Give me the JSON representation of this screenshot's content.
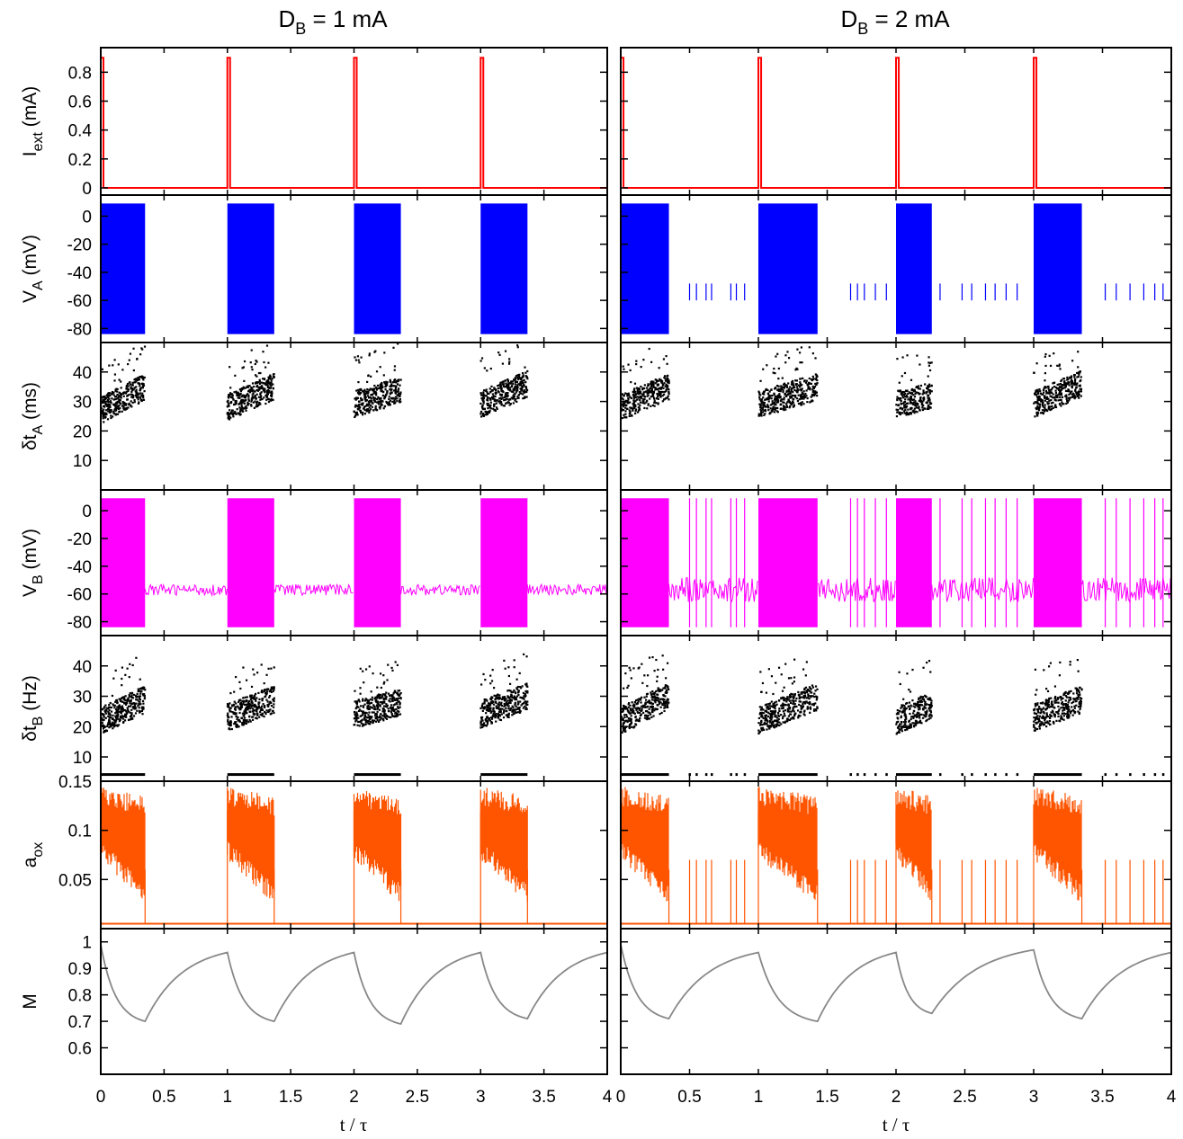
{
  "chart_data": {
    "type": "line",
    "columns": [
      {
        "title_main": "D",
        "title_sub": "B",
        "title_rest": " = 1 mA"
      },
      {
        "title_main": "D",
        "title_sub": "B",
        "title_rest": " = 2 mA"
      }
    ],
    "xlabel": "t / τ",
    "xlim": [
      0,
      4
    ],
    "xticks": [
      "0",
      "0.5",
      "1",
      "1.5",
      "2",
      "2.5",
      "3",
      "3.5",
      "4"
    ],
    "panels": [
      {
        "id": "iext",
        "ylabel_main": "I",
        "ylabel_sub": "ext",
        "ylabel_rest": " (mA)",
        "ylim": [
          -0.05,
          0.97
        ],
        "yticks": [
          "0",
          "0.2",
          "0.4",
          "0.6",
          "0.8"
        ],
        "ytick_values": [
          0,
          0.2,
          0.4,
          0.6,
          0.8
        ],
        "color": "#ff0000",
        "pulse_height": 0.9,
        "pulse_width": 0.02
      },
      {
        "id": "va",
        "ylabel_main": "V",
        "ylabel_sub": "A",
        "ylabel_rest": " (mV)",
        "ylim": [
          -90,
          15
        ],
        "yticks": [
          "-80",
          "-60",
          "-40",
          "-20",
          "0"
        ],
        "ytick_values": [
          -80,
          -60,
          -40,
          -20,
          0
        ],
        "color": "#0000ff",
        "low": -84,
        "high": 9
      },
      {
        "id": "dta",
        "ylabel_main": "δt",
        "ylabel_sub": "A",
        "ylabel_rest": " (ms)",
        "ylim": [
          0,
          50
        ],
        "yticks": [
          "10",
          "20",
          "30",
          "40"
        ],
        "ytick_values": [
          10,
          20,
          30,
          40
        ],
        "color": "#000000"
      },
      {
        "id": "vb",
        "ylabel_main": "V",
        "ylabel_sub": "B",
        "ylabel_rest": " (mV)",
        "ylim": [
          -90,
          15
        ],
        "yticks": [
          "-80",
          "-60",
          "-40",
          "-20",
          "0"
        ],
        "ytick_values": [
          -80,
          -60,
          -40,
          -20,
          0
        ],
        "color": "#ff00ff",
        "low": -84,
        "high": 9,
        "rest": -57
      },
      {
        "id": "dtb",
        "ylabel_main": "δt",
        "ylabel_sub": "B",
        "ylabel_rest": " (Hz)",
        "ylim": [
          2,
          50
        ],
        "yticks": [
          "10",
          "20",
          "30",
          "40"
        ],
        "ytick_values": [
          10,
          20,
          30,
          40
        ],
        "color": "#000000"
      },
      {
        "id": "aox",
        "ylabel_main": "a",
        "ylabel_sub": "ox",
        "ylabel_rest": "",
        "ylim": [
          0,
          0.15
        ],
        "yticks": [
          "0.05",
          "0.1",
          "0.15"
        ],
        "ytick_values": [
          0.05,
          0.1,
          0.15
        ],
        "color": "#ff5500",
        "baseline": 0.005
      },
      {
        "id": "m",
        "ylabel_main": "M",
        "ylabel_sub": "",
        "ylabel_rest": "",
        "ylim": [
          0.5,
          1.05
        ],
        "yticks": [
          "0.6",
          "0.7",
          "0.8",
          "0.9",
          "1"
        ],
        "ytick_values": [
          0.6,
          0.7,
          0.8,
          0.9,
          1.0
        ],
        "color": "#888888"
      }
    ],
    "series": [
      {
        "name": "",
        "bursts": [
          [
            0.0,
            0.35
          ],
          [
            1.0,
            1.37
          ],
          [
            2.0,
            2.37
          ],
          [
            3.0,
            3.37
          ],
          [
            4.0,
            4.04
          ]
        ],
        "m_curve": {
          "x": [
            0,
            0.35,
            1.0,
            1.37,
            2.0,
            2.37,
            3.0,
            3.37,
            4.0
          ],
          "y": [
            0.99,
            0.7,
            0.96,
            0.7,
            0.96,
            0.69,
            0.96,
            0.71,
            0.96
          ]
        },
        "dta_band": [
          [
            27,
            35
          ],
          [
            28,
            35
          ],
          [
            29,
            34
          ],
          [
            29,
            36
          ],
          [
            27,
            27
          ]
        ],
        "dtb_band": [
          [
            22,
            29
          ],
          [
            23,
            29
          ],
          [
            24,
            28
          ],
          [
            24,
            30
          ],
          [
            23,
            23
          ]
        ],
        "sparse_spikes": []
      },
      {
        "name": "",
        "bursts": [
          [
            0.0,
            0.35
          ],
          [
            1.0,
            1.43
          ],
          [
            2.0,
            2.26
          ],
          [
            3.0,
            3.35
          ],
          [
            4.0,
            4.04
          ]
        ],
        "m_curve": {
          "x": [
            0,
            0.35,
            1.0,
            1.43,
            2.0,
            2.26,
            3.0,
            3.35,
            4.0
          ],
          "y": [
            0.99,
            0.71,
            0.96,
            0.7,
            0.96,
            0.73,
            0.97,
            0.71,
            0.96
          ]
        },
        "dta_band": [
          [
            28,
            35
          ],
          [
            29,
            35
          ],
          [
            29,
            32
          ],
          [
            29,
            36
          ],
          [
            27,
            27
          ]
        ],
        "dtb_band": [
          [
            22,
            30
          ],
          [
            22,
            30
          ],
          [
            22,
            27
          ],
          [
            23,
            29
          ],
          [
            22,
            22
          ]
        ],
        "sparse_spikes": [
          0.5,
          0.55,
          0.62,
          0.66,
          0.8,
          0.84,
          0.9,
          1.67,
          1.72,
          1.77,
          1.85,
          1.93,
          2.32,
          2.48,
          2.55,
          2.65,
          2.72,
          2.8,
          2.88,
          3.52,
          3.6,
          3.7,
          3.8,
          3.88,
          3.94
        ]
      }
    ]
  }
}
